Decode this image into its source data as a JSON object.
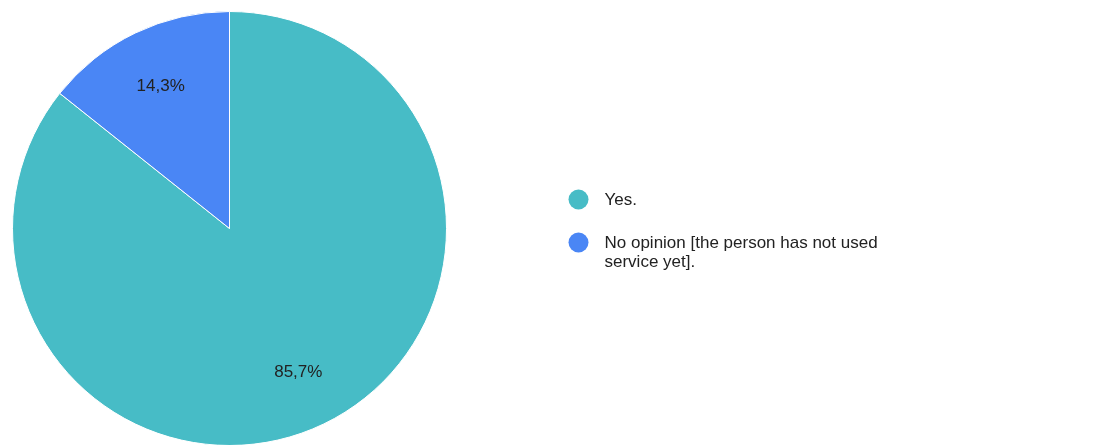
{
  "chart_data": {
    "type": "pie",
    "categories": [
      "Yes.",
      "No opinion [the person has not used service yet]."
    ],
    "values": [
      85.7,
      14.3
    ],
    "colors": [
      "#47bcc6",
      "#4a86f5"
    ],
    "value_labels": [
      "85,7%",
      "14,3%"
    ],
    "legend": "right"
  }
}
